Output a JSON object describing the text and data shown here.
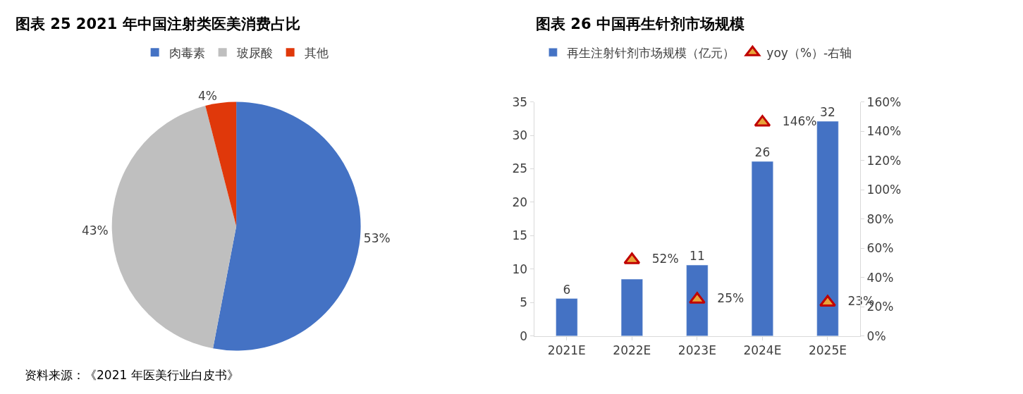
{
  "chart_data": [
    {
      "type": "pie",
      "title": "图表 25 2021 年中国注射类医美消费占比",
      "categories": [
        "肉毒素",
        "玻尿酸",
        "其他"
      ],
      "values": [
        53,
        43,
        4
      ],
      "value_labels": [
        "53%",
        "43%",
        "4%"
      ],
      "colors": [
        "#4472c4",
        "#bfbfbf",
        "#e0380a"
      ],
      "legend": "top",
      "annotations": [
        "资料来源：《2021 年医美行业白皮书》"
      ]
    },
    {
      "type": "bar",
      "title": "图表 26 中国再生针剂市场规模",
      "categories": [
        "2021E",
        "2022E",
        "2023E",
        "2024E",
        "2025E"
      ],
      "series": [
        {
          "type": "bar",
          "name": "再生注射针剂市场规模（亿元）",
          "color": "#4472c4",
          "values": [
            5.6,
            8.5,
            10.6,
            26.1,
            32.1
          ],
          "value_labels": [
            "6",
            null,
            "11",
            "26",
            "32"
          ]
        },
        {
          "type": "scatter",
          "axis": "y2",
          "marker": "triangle",
          "name": "yoy（%）-右轴",
          "color": "#c00000",
          "values": [
            null,
            52,
            25,
            146,
            23
          ],
          "value_labels": [
            null,
            "52%",
            "25%",
            "146%",
            "23%"
          ]
        }
      ],
      "ylim": [
        0,
        35
      ],
      "yticks": [
        0,
        5,
        10,
        15,
        20,
        25,
        30,
        35
      ],
      "y2lim": [
        0,
        160
      ],
      "y2ticks": [
        {
          "value": 0,
          "label": "0%"
        },
        {
          "value": 20,
          "label": "20%"
        },
        {
          "value": 40,
          "label": "40%"
        },
        {
          "value": 60,
          "label": "60%"
        },
        {
          "value": 80,
          "label": "80%"
        },
        {
          "value": 100,
          "label": "100%"
        },
        {
          "value": 120,
          "label": "120%"
        },
        {
          "value": 140,
          "label": "140%"
        },
        {
          "value": 160,
          "label": "160%"
        }
      ],
      "legend": "top"
    }
  ]
}
